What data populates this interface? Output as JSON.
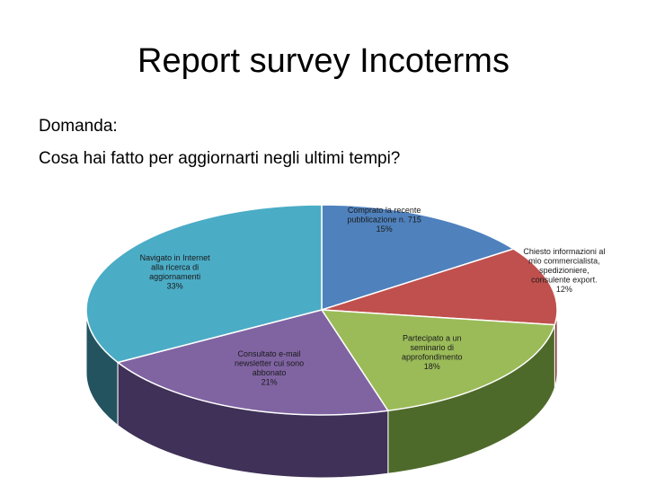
{
  "slide": {
    "title": "Report survey Incoterms",
    "question_label": "Domanda:",
    "question_text": "Cosa hai fatto per aggiornarti negli ultimi tempi?"
  },
  "chart_data": {
    "type": "pie",
    "title": "",
    "slices": [
      {
        "label_lines": [
          "Comprato la recente",
          "pubblicazione n. 715"
        ],
        "percent_label": "15%",
        "value": 15,
        "color": "#4f81bd",
        "side": "#2c4d7a"
      },
      {
        "label_lines": [
          "Chiesto informazioni al",
          "mio commercialista,",
          "spedizioniere,",
          "consulente export."
        ],
        "percent_label": "12%",
        "value": 12,
        "color": "#c0504d",
        "side": "#7a2c2a"
      },
      {
        "label_lines": [
          "Partecipato a un",
          "seminario di",
          "approfondimento"
        ],
        "percent_label": "18%",
        "value": 18,
        "color": "#9bbb59",
        "side": "#4e6a2a"
      },
      {
        "label_lines": [
          "Consultato e-mail",
          "newsletter cui sono",
          "abbonato"
        ],
        "percent_label": "21%",
        "value": 21,
        "color": "#8064a2",
        "side": "#3f3157"
      },
      {
        "label_lines": [
          "Navigato in Internet",
          "alla ricerca di",
          "aggiornamenti"
        ],
        "percent_label": "33%",
        "value": 33,
        "color": "#4bacc6",
        "side": "#23535f"
      }
    ]
  }
}
